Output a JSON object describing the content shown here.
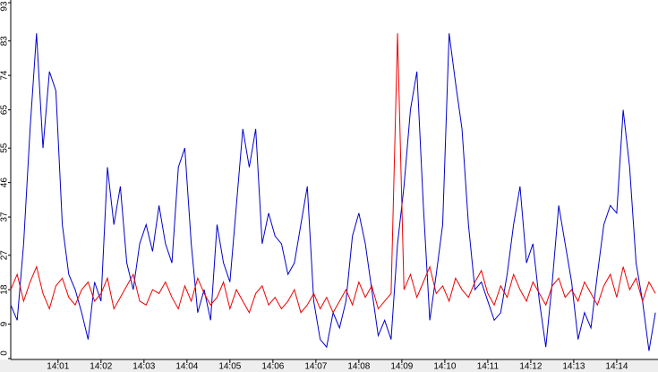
{
  "chart_data": {
    "type": "line",
    "x": [
      839.9,
      840.05,
      840.2,
      840.35,
      840.5,
      840.65,
      840.8,
      840.95,
      841.1,
      841.25,
      841.4,
      841.55,
      841.7,
      841.85,
      842,
      842.15,
      842.3,
      842.45,
      842.6,
      842.75,
      842.9,
      843.05,
      843.2,
      843.35,
      843.5,
      843.65,
      843.8,
      843.95,
      844.1,
      844.25,
      844.4,
      844.55,
      844.7,
      844.85,
      845,
      845.15,
      845.3,
      845.45,
      845.6,
      845.75,
      845.9,
      846.05,
      846.2,
      846.35,
      846.5,
      846.65,
      846.8,
      846.95,
      847.1,
      847.25,
      847.4,
      847.55,
      847.7,
      847.85,
      848,
      848.15,
      848.3,
      848.45,
      848.6,
      848.75,
      848.9,
      849.05,
      849.2,
      849.35,
      849.5,
      849.65,
      849.8,
      849.95,
      850.1,
      850.25,
      850.4,
      850.55,
      850.7,
      850.85,
      851,
      851.15,
      851.3,
      851.45,
      851.6,
      851.75,
      851.9,
      852.05,
      852.2,
      852.35,
      852.5,
      852.65,
      852.8,
      852.95,
      853.1,
      853.25,
      853.4,
      853.55,
      853.7,
      853.85,
      854,
      854.15,
      854.3,
      854.45,
      854.6,
      854.75,
      854.9
    ],
    "series": [
      {
        "color": "#0000cc",
        "values": [
          14,
          10,
          30,
          60,
          85,
          55,
          75,
          70,
          35,
          22,
          18,
          12,
          5,
          20,
          15,
          50,
          35,
          45,
          25,
          18,
          30,
          35,
          28,
          40,
          30,
          25,
          50,
          55,
          30,
          12,
          18,
          10,
          35,
          25,
          20,
          40,
          60,
          50,
          60,
          30,
          38,
          32,
          30,
          22,
          25,
          35,
          45,
          15,
          5,
          3,
          12,
          8,
          15,
          32,
          38,
          30,
          18,
          6,
          10,
          5,
          30,
          45,
          65,
          75,
          40,
          10,
          22,
          35,
          85,
          72,
          60,
          35,
          18,
          20,
          15,
          10,
          12,
          22,
          35,
          45,
          25,
          30,
          15,
          3,
          20,
          40,
          30,
          20,
          5,
          12,
          8,
          22,
          35,
          40,
          38,
          65,
          50,
          25,
          15,
          2,
          12
        ]
      },
      {
        "color": "#ee0000",
        "values": [
          18,
          22,
          15,
          20,
          24,
          17,
          13,
          19,
          21,
          16,
          14,
          18,
          20,
          15,
          17,
          21,
          13,
          16,
          19,
          22,
          15,
          14,
          18,
          17,
          20,
          16,
          13,
          19,
          15,
          21,
          17,
          14,
          16,
          20,
          13,
          18,
          15,
          12,
          17,
          19,
          14,
          16,
          13,
          15,
          18,
          12,
          14,
          17,
          13,
          16,
          12,
          15,
          18,
          14,
          20,
          16,
          19,
          13,
          15,
          17,
          85,
          18,
          22,
          16,
          20,
          24,
          17,
          19,
          15,
          21,
          18,
          16,
          20,
          23,
          17,
          14,
          19,
          16,
          22,
          18,
          15,
          20,
          17,
          14,
          19,
          21,
          16,
          18,
          15,
          20,
          17,
          14,
          19,
          22,
          16,
          24,
          18,
          21,
          15,
          20,
          17
        ]
      }
    ],
    "xlim": [
      839.9,
      854.96
    ],
    "xticks": [
      {
        "value": 841,
        "label": "14:01"
      },
      {
        "value": 842,
        "label": "14:02"
      },
      {
        "value": 843,
        "label": "14:03"
      },
      {
        "value": 844,
        "label": "14:04"
      },
      {
        "value": 845,
        "label": "14:05"
      },
      {
        "value": 846,
        "label": "14:06"
      },
      {
        "value": 847,
        "label": "14:07"
      },
      {
        "value": 848,
        "label": "14:08"
      },
      {
        "value": 849,
        "label": "14:09"
      },
      {
        "value": 850,
        "label": "14:10"
      },
      {
        "value": 851,
        "label": "14:11"
      },
      {
        "value": 852,
        "label": "14:12"
      },
      {
        "value": 853,
        "label": "14:13"
      },
      {
        "value": 854,
        "label": "14:14"
      }
    ],
    "ylim": [
      0,
      93
    ],
    "yticks": [
      0,
      9,
      18,
      27,
      37,
      46,
      55,
      65,
      74,
      83,
      93
    ]
  }
}
